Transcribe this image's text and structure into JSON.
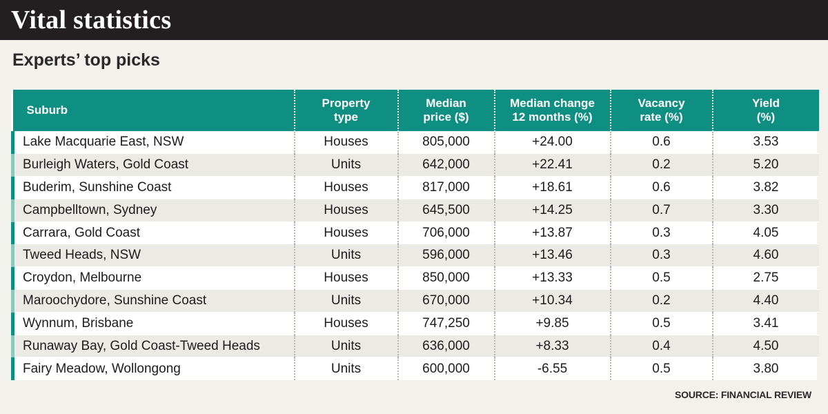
{
  "banner": {
    "title": "Vital statistics"
  },
  "subtitle": "Experts’ top picks",
  "chart_data": {
    "type": "table",
    "columns": [
      {
        "line1": "Suburb",
        "line2": ""
      },
      {
        "line1": "Property",
        "line2": "type"
      },
      {
        "line1": "Median",
        "line2": "price ($)"
      },
      {
        "line1": "Median change",
        "line2": "12 months (%)"
      },
      {
        "line1": "Vacancy",
        "line2": "rate (%)"
      },
      {
        "line1": "Yield",
        "line2": "(%)"
      }
    ],
    "rows": [
      [
        "Lake Macquarie East, NSW",
        "Houses",
        "805,000",
        "+24.00",
        "0.6",
        "3.53"
      ],
      [
        "Burleigh Waters, Gold Coast",
        "Units",
        "642,000",
        "+22.41",
        "0.2",
        "5.20"
      ],
      [
        "Buderim, Sunshine Coast",
        "Houses",
        "817,000",
        "+18.61",
        "0.6",
        "3.82"
      ],
      [
        "Campbelltown, Sydney",
        "Houses",
        "645,500",
        "+14.25",
        "0.7",
        "3.30"
      ],
      [
        "Carrara, Gold Coast",
        "Houses",
        "706,000",
        "+13.87",
        "0.3",
        "4.05"
      ],
      [
        "Tweed Heads, NSW",
        "Units",
        "596,000",
        "+13.46",
        "0.3",
        "4.60"
      ],
      [
        "Croydon, Melbourne",
        "Houses",
        "850,000",
        "+13.33",
        "0.5",
        "2.75"
      ],
      [
        "Maroochydore, Sunshine Coast",
        "Units",
        "670,000",
        "+10.34",
        "0.2",
        "4.40"
      ],
      [
        "Wynnum, Brisbane",
        "Houses",
        "747,250",
        "+9.85",
        "0.5",
        "3.41"
      ],
      [
        "Runaway Bay, Gold Coast-Tweed Heads",
        "Units",
        "636,000",
        "+8.33",
        "0.4",
        "4.50"
      ],
      [
        "Fairy Meadow, Wollongong",
        "Units",
        "600,000",
        "-6.55",
        "0.5",
        "3.80"
      ]
    ]
  },
  "source": "SOURCE: FINANCIAL REVIEW",
  "colors": {
    "header": "#0f8f82",
    "banner": "#231f20",
    "row_alt": "#eceae4"
  }
}
